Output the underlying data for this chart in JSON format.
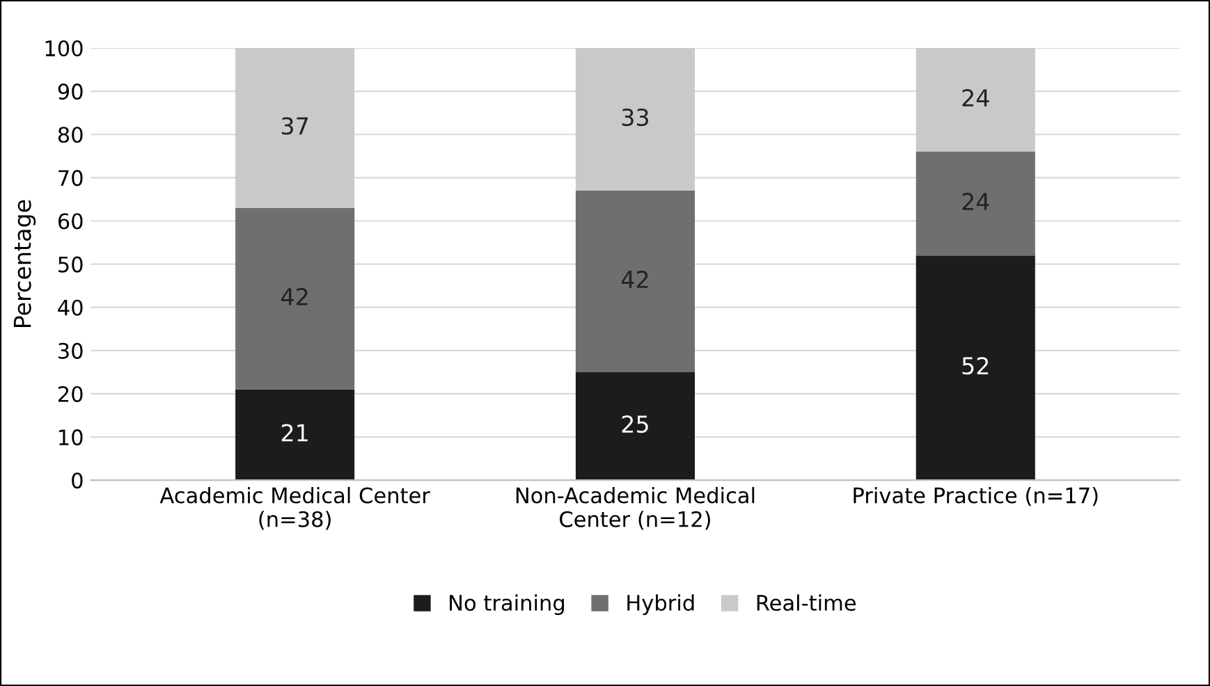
{
  "chart_data": {
    "type": "bar",
    "stacked": true,
    "ylabel": "Percentage",
    "categories": [
      "Academic Medical Center\n(n=38)",
      "Non-Academic Medical\nCenter (n=12)",
      "Private Practice (n=17)"
    ],
    "series": [
      {
        "name": "No training",
        "color": "#1c1c1c",
        "values": [
          21,
          25,
          52
        ]
      },
      {
        "name": "Hybrid",
        "color": "#6f6f6f",
        "values": [
          42,
          42,
          24
        ]
      },
      {
        "name": "Real-time",
        "color": "#c9c9c9",
        "values": [
          37,
          33,
          24
        ]
      }
    ],
    "ylim": [
      0,
      100
    ],
    "yticks": [
      0,
      10,
      20,
      30,
      40,
      50,
      60,
      70,
      80,
      90,
      100
    ],
    "grid": "y",
    "legend": "bottom",
    "data_labels": true
  }
}
